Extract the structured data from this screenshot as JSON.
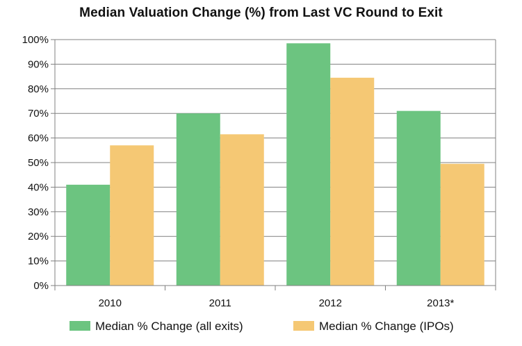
{
  "chart_data": {
    "type": "bar",
    "title": "Median Valuation Change (%) from Last VC Round to Exit",
    "categories": [
      "2010",
      "2011",
      "2012",
      "2013*"
    ],
    "series": [
      {
        "name": "Median % Change (all exits)",
        "values": [
          41,
          70,
          98.5,
          71
        ],
        "color": "#6cc480"
      },
      {
        "name": "Median % Change (IPOs)",
        "values": [
          57,
          61.5,
          84.5,
          49.5
        ],
        "color": "#f5c874"
      }
    ],
    "ylim": [
      0,
      100
    ],
    "yticks": [
      0,
      10,
      20,
      30,
      40,
      50,
      60,
      70,
      80,
      90,
      100
    ],
    "ytick_labels": [
      "0%",
      "10%",
      "20%",
      "30%",
      "40%",
      "50%",
      "60%",
      "70%",
      "80%",
      "90%",
      "100%"
    ],
    "grid": true,
    "legend_position": "bottom"
  }
}
